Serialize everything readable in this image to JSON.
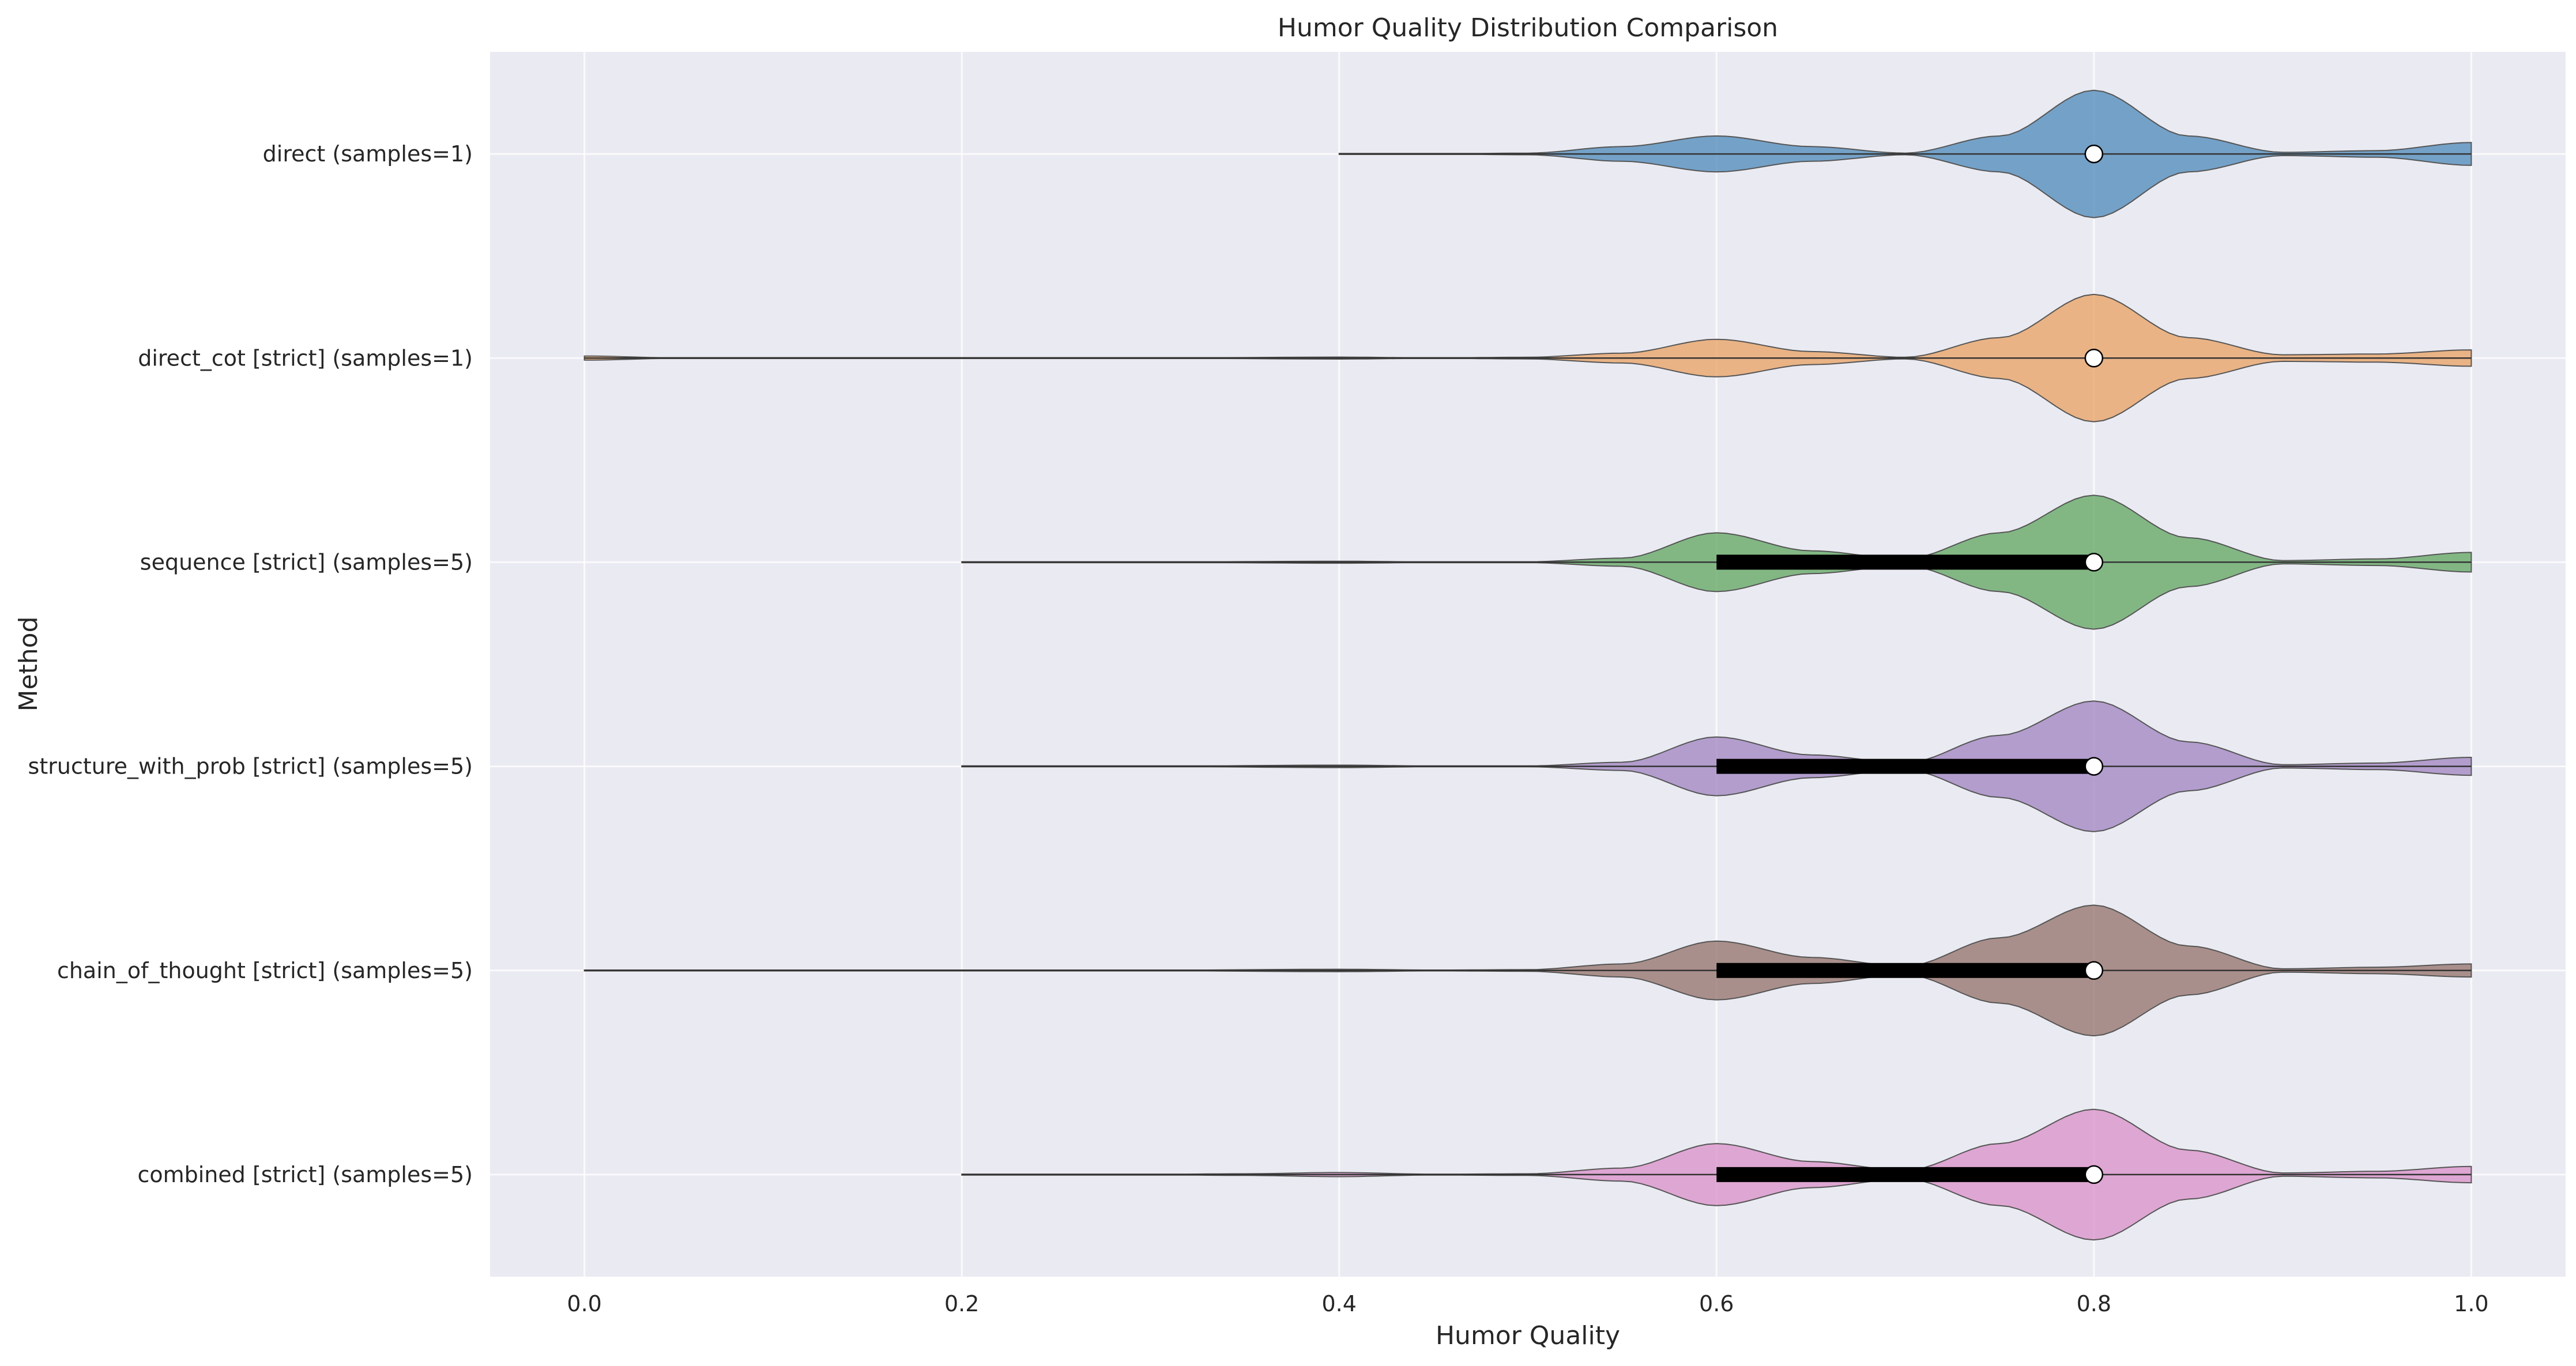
{
  "chart_data": {
    "type": "violin",
    "title": "Humor Quality Distribution Comparison",
    "xlabel": "Humor Quality",
    "ylabel": "Method",
    "xlim": [
      -0.05,
      1.05
    ],
    "xticks": [
      0.0,
      0.2,
      0.4,
      0.6,
      0.8,
      1.0
    ],
    "xtick_labels": [
      "0.0",
      "0.2",
      "0.4",
      "0.6",
      "0.8",
      "1.0"
    ],
    "grid": true,
    "orientation": "horizontal",
    "series": [
      {
        "name": "direct (samples=1)",
        "color": "#4C88B8",
        "min": 0.4,
        "max": 1.0,
        "q1": 0.8,
        "q3": 0.8,
        "median": 0.8,
        "density": [
          [
            0.4,
            0.0
          ],
          [
            0.45,
            0.002
          ],
          [
            0.5,
            0.01
          ],
          [
            0.55,
            0.09
          ],
          [
            0.6,
            0.22
          ],
          [
            0.65,
            0.09
          ],
          [
            0.7,
            0.01
          ],
          [
            0.75,
            0.22
          ],
          [
            0.8,
            0.78
          ],
          [
            0.85,
            0.22
          ],
          [
            0.9,
            0.02
          ],
          [
            0.95,
            0.04
          ],
          [
            1.0,
            0.14
          ]
        ]
      },
      {
        "name": "direct_cot [strict] (samples=1)",
        "color": "#E8A060",
        "min": 0.0,
        "max": 1.0,
        "q1": 0.8,
        "q3": 0.8,
        "median": 0.8,
        "density": [
          [
            0.0,
            0.025
          ],
          [
            0.05,
            0.002
          ],
          [
            0.1,
            0.0
          ],
          [
            0.2,
            0.0
          ],
          [
            0.3,
            0.0
          ],
          [
            0.4,
            0.012
          ],
          [
            0.45,
            0.003
          ],
          [
            0.5,
            0.01
          ],
          [
            0.55,
            0.06
          ],
          [
            0.6,
            0.23
          ],
          [
            0.65,
            0.08
          ],
          [
            0.7,
            0.01
          ],
          [
            0.75,
            0.25
          ],
          [
            0.8,
            0.78
          ],
          [
            0.85,
            0.25
          ],
          [
            0.9,
            0.04
          ],
          [
            0.95,
            0.05
          ],
          [
            1.0,
            0.1
          ]
        ]
      },
      {
        "name": "sequence [strict] (samples=5)",
        "color": "#5FA65F",
        "min": 0.2,
        "max": 1.0,
        "q1": 0.6,
        "q3": 0.8,
        "median": 0.8,
        "density": [
          [
            0.2,
            0.0
          ],
          [
            0.3,
            0.002
          ],
          [
            0.4,
            0.012
          ],
          [
            0.45,
            0.004
          ],
          [
            0.5,
            0.005
          ],
          [
            0.55,
            0.05
          ],
          [
            0.6,
            0.36
          ],
          [
            0.65,
            0.14
          ],
          [
            0.7,
            0.04
          ],
          [
            0.75,
            0.36
          ],
          [
            0.8,
            0.82
          ],
          [
            0.85,
            0.3
          ],
          [
            0.9,
            0.02
          ],
          [
            0.95,
            0.04
          ],
          [
            1.0,
            0.12
          ]
        ]
      },
      {
        "name": "structure_with_prob [strict] (samples=5)",
        "color": "#9F83C0",
        "min": 0.2,
        "max": 1.0,
        "q1": 0.6,
        "q3": 0.8,
        "median": 0.8,
        "density": [
          [
            0.2,
            0.0
          ],
          [
            0.3,
            0.002
          ],
          [
            0.4,
            0.015
          ],
          [
            0.45,
            0.005
          ],
          [
            0.5,
            0.005
          ],
          [
            0.55,
            0.05
          ],
          [
            0.6,
            0.36
          ],
          [
            0.65,
            0.14
          ],
          [
            0.7,
            0.04
          ],
          [
            0.75,
            0.38
          ],
          [
            0.8,
            0.8
          ],
          [
            0.85,
            0.3
          ],
          [
            0.9,
            0.02
          ],
          [
            0.95,
            0.04
          ],
          [
            1.0,
            0.11
          ]
        ]
      },
      {
        "name": "chain_of_thought [strict] (samples=5)",
        "color": "#937068",
        "min": 0.0,
        "max": 1.0,
        "q1": 0.6,
        "q3": 0.8,
        "median": 0.8,
        "density": [
          [
            0.0,
            0.0
          ],
          [
            0.1,
            0.0
          ],
          [
            0.2,
            0.0
          ],
          [
            0.3,
            0.002
          ],
          [
            0.4,
            0.015
          ],
          [
            0.45,
            0.005
          ],
          [
            0.5,
            0.01
          ],
          [
            0.55,
            0.08
          ],
          [
            0.6,
            0.36
          ],
          [
            0.65,
            0.16
          ],
          [
            0.7,
            0.05
          ],
          [
            0.75,
            0.4
          ],
          [
            0.8,
            0.8
          ],
          [
            0.85,
            0.3
          ],
          [
            0.9,
            0.02
          ],
          [
            0.95,
            0.04
          ],
          [
            1.0,
            0.08
          ]
        ]
      },
      {
        "name": "combined [strict] (samples=5)",
        "color": "#DA8FC8",
        "min": 0.2,
        "max": 1.0,
        "q1": 0.6,
        "q3": 0.8,
        "median": 0.8,
        "density": [
          [
            0.2,
            0.0
          ],
          [
            0.3,
            0.003
          ],
          [
            0.35,
            0.01
          ],
          [
            0.4,
            0.025
          ],
          [
            0.45,
            0.005
          ],
          [
            0.5,
            0.01
          ],
          [
            0.55,
            0.08
          ],
          [
            0.6,
            0.38
          ],
          [
            0.65,
            0.16
          ],
          [
            0.7,
            0.05
          ],
          [
            0.75,
            0.38
          ],
          [
            0.8,
            0.8
          ],
          [
            0.85,
            0.3
          ],
          [
            0.9,
            0.02
          ],
          [
            0.95,
            0.04
          ],
          [
            1.0,
            0.1
          ]
        ]
      }
    ]
  }
}
